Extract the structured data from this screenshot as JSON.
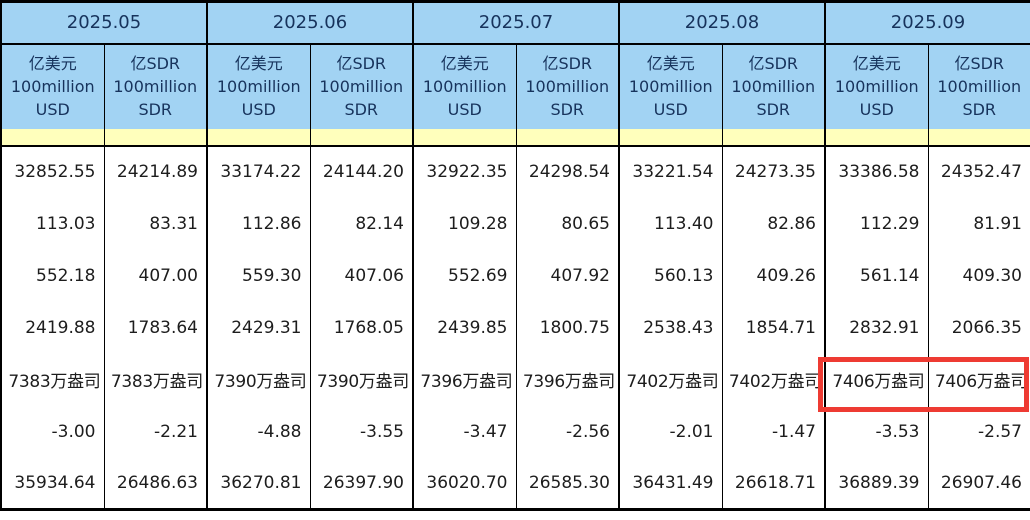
{
  "table": {
    "months": [
      "2025.05",
      "2025.06",
      "2025.07",
      "2025.08",
      "2025.09"
    ],
    "sub_usd": "亿美元\n100million\nUSD",
    "sub_sdr": "亿SDR\n100million\nSDR",
    "rows": [
      [
        "32852.55",
        "24214.89",
        "33174.22",
        "24144.20",
        "32922.35",
        "24298.54",
        "33221.54",
        "24273.35",
        "33386.58",
        "24352.47"
      ],
      [
        "113.03",
        "83.31",
        "112.86",
        "82.14",
        "109.28",
        "80.65",
        "113.40",
        "82.86",
        "112.29",
        "81.91"
      ],
      [
        "552.18",
        "407.00",
        "559.30",
        "407.06",
        "552.69",
        "407.92",
        "560.13",
        "409.26",
        "561.14",
        "409.30"
      ],
      [
        "2419.88",
        "1783.64",
        "2429.31",
        "1768.05",
        "2439.85",
        "1800.75",
        "2538.43",
        "1854.71",
        "2832.91",
        "2066.35"
      ],
      [
        "7383万盎司",
        "7383万盎司",
        "7390万盎司",
        "7390万盎司",
        "7396万盎司",
        "7396万盎司",
        "7402万盎司",
        "7402万盎司",
        "7406万盎司",
        "7406万盎司"
      ],
      [
        "-3.00",
        "-2.21",
        "-4.88",
        "-3.55",
        "-3.47",
        "-2.56",
        "-2.01",
        "-1.47",
        "-3.53",
        "-2.57"
      ],
      [
        "35934.64",
        "26486.63",
        "36270.81",
        "26397.90",
        "36020.70",
        "26585.30",
        "36431.49",
        "26618.71",
        "36889.39",
        "26907.46"
      ]
    ],
    "highlight_note": "7406万盎司 cells of 2025.09 outlined"
  },
  "colors": {
    "header_blue": "#a2d3f3",
    "stripe_yellow": "#ffffbc",
    "header_text": "#17335c",
    "highlight_red": "#ee3b33"
  }
}
